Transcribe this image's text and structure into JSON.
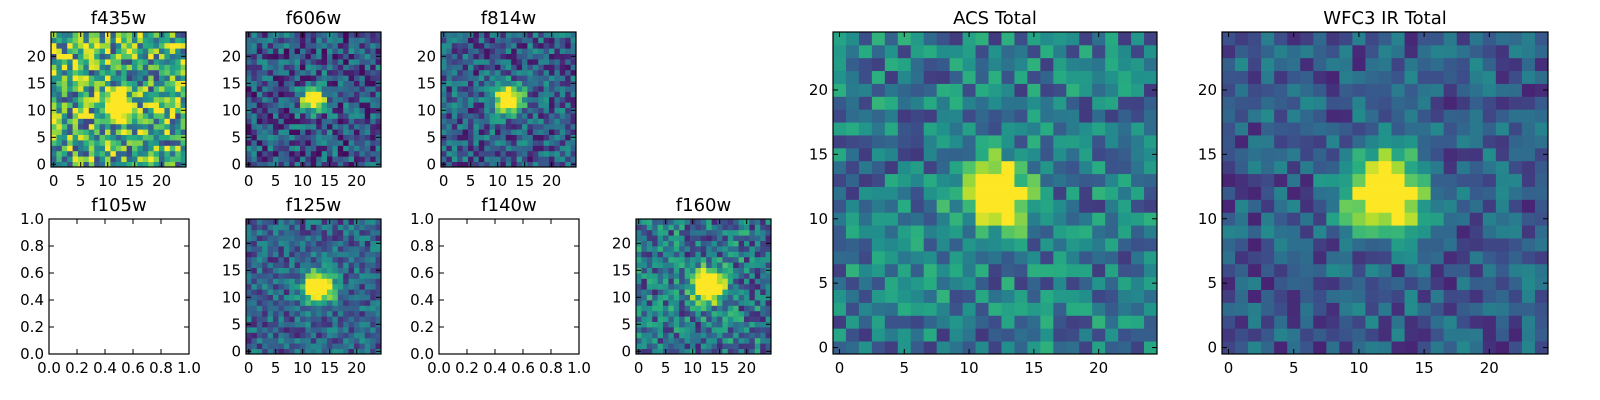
{
  "chart_data": [
    {
      "type": "heatmap",
      "title": "f435w",
      "colormap": "viridis",
      "xlim": [
        -0.5,
        24.5
      ],
      "ylim": [
        -0.5,
        24.5
      ],
      "xticks": [
        0,
        5,
        10,
        15,
        20
      ],
      "yticks": [
        0,
        5,
        10,
        15,
        20
      ],
      "grid": false,
      "shape": [
        25,
        25
      ],
      "peak": {
        "x": 12,
        "y": 11,
        "width": 1.6
      },
      "noise": 0.42,
      "background": 0.62
    },
    {
      "type": "heatmap",
      "title": "f606w",
      "colormap": "viridis",
      "xlim": [
        -0.5,
        24.5
      ],
      "ylim": [
        -0.5,
        24.5
      ],
      "xticks": [
        0,
        5,
        10,
        15,
        20
      ],
      "yticks": [
        0,
        5,
        10,
        15,
        20
      ],
      "grid": false,
      "shape": [
        25,
        25
      ],
      "peak": {
        "x": 12,
        "y": 12,
        "width": 1.5
      },
      "noise": 0.26,
      "background": 0.28
    },
    {
      "type": "heatmap",
      "title": "f814w",
      "colormap": "viridis",
      "xlim": [
        -0.5,
        24.5
      ],
      "ylim": [
        -0.5,
        24.5
      ],
      "xticks": [
        0,
        5,
        10,
        15,
        20
      ],
      "yticks": [
        0,
        5,
        10,
        15,
        20
      ],
      "grid": false,
      "shape": [
        25,
        25
      ],
      "peak": {
        "x": 12,
        "y": 12,
        "width": 1.8
      },
      "noise": 0.24,
      "background": 0.3
    },
    {
      "type": "empty",
      "title": "f105w",
      "xlim": [
        0,
        1
      ],
      "ylim": [
        0,
        1
      ],
      "xticks": [
        "0.0",
        "0.2",
        "0.4",
        "0.6",
        "0.8",
        "1.0"
      ],
      "yticks": [
        "0.0",
        "0.2",
        "0.4",
        "0.6",
        "0.8",
        "1.0"
      ]
    },
    {
      "type": "heatmap",
      "title": "f125w",
      "colormap": "viridis",
      "xlim": [
        -0.5,
        24.5
      ],
      "ylim": [
        -0.5,
        24.5
      ],
      "xticks": [
        0,
        5,
        10,
        15,
        20
      ],
      "yticks": [
        0,
        5,
        10,
        15,
        20
      ],
      "grid": false,
      "shape": [
        25,
        25
      ],
      "peak": {
        "x": 13,
        "y": 12,
        "width": 2.0
      },
      "noise": 0.2,
      "background": 0.32
    },
    {
      "type": "empty",
      "title": "f140w",
      "xlim": [
        0,
        1
      ],
      "ylim": [
        0,
        1
      ],
      "xticks": [
        "0.0",
        "0.2",
        "0.4",
        "0.6",
        "0.8",
        "1.0"
      ],
      "yticks": [
        "0.0",
        "0.2",
        "0.4",
        "0.6",
        "0.8",
        "1.0"
      ]
    },
    {
      "type": "heatmap",
      "title": "f160w",
      "colormap": "viridis",
      "xlim": [
        -0.5,
        24.5
      ],
      "ylim": [
        -0.5,
        24.5
      ],
      "xticks": [
        0,
        5,
        10,
        15,
        20
      ],
      "yticks": [
        0,
        5,
        10,
        15,
        20
      ],
      "grid": false,
      "shape": [
        25,
        25
      ],
      "peak": {
        "x": 13,
        "y": 12,
        "width": 2.0
      },
      "noise": 0.28,
      "background": 0.4
    },
    {
      "type": "heatmap",
      "title": "ACS Total",
      "colormap": "viridis",
      "xlim": [
        -0.5,
        24.5
      ],
      "ylim": [
        -0.5,
        24.5
      ],
      "xticks": [
        0,
        5,
        10,
        15,
        20
      ],
      "yticks": [
        0,
        5,
        10,
        15,
        20
      ],
      "grid": false,
      "shape": [
        25,
        25
      ],
      "peak": {
        "x": 12,
        "y": 12,
        "width": 1.7
      },
      "noise": 0.24,
      "background": 0.42
    },
    {
      "type": "heatmap",
      "title": "WFC3 IR Total",
      "colormap": "viridis",
      "xlim": [
        -0.5,
        24.5
      ],
      "ylim": [
        -0.5,
        24.5
      ],
      "xticks": [
        0,
        5,
        10,
        15,
        20
      ],
      "yticks": [
        0,
        5,
        10,
        15,
        20
      ],
      "grid": false,
      "shape": [
        25,
        25
      ],
      "peak": {
        "x": 12,
        "y": 12,
        "width": 2.1
      },
      "noise": 0.18,
      "background": 0.3
    }
  ]
}
